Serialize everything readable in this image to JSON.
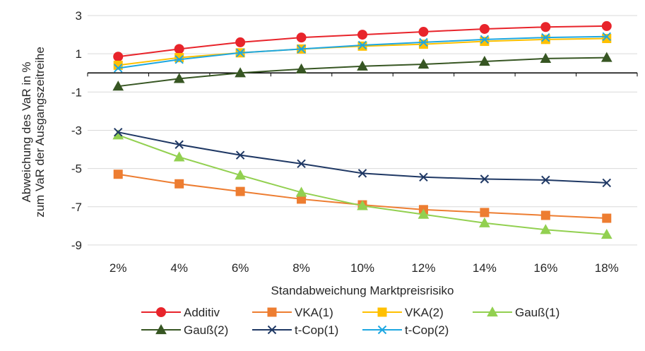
{
  "chart_data": {
    "type": "line",
    "xlabel": "Standabweichung Marktpreisrisiko",
    "ylabel_lines": [
      "Abweichung des VaR in %",
      "zum VaR der Ausgangszeitreihe"
    ],
    "categories": [
      "2%",
      "4%",
      "6%",
      "8%",
      "10%",
      "12%",
      "14%",
      "16%",
      "18%"
    ],
    "ylim": [
      -10,
      3
    ],
    "yticks": [
      3,
      1,
      -1,
      -3,
      -5,
      -7,
      -9
    ],
    "grid": true,
    "legend_position": "bottom",
    "series": [
      {
        "name": "Additiv",
        "color": "#e8242b",
        "marker": "circle",
        "values": [
          0.85,
          1.25,
          1.6,
          1.85,
          2.0,
          2.15,
          2.3,
          2.4,
          2.45
        ]
      },
      {
        "name": "VKA(1)",
        "color": "#ed7d31",
        "marker": "square",
        "values": [
          -5.3,
          -5.8,
          -6.2,
          -6.6,
          -6.9,
          -7.15,
          -7.3,
          -7.45,
          -7.6
        ]
      },
      {
        "name": "VKA(2)",
        "color": "#ffc000",
        "marker": "square",
        "values": [
          0.4,
          0.8,
          1.05,
          1.25,
          1.4,
          1.5,
          1.65,
          1.75,
          1.8
        ]
      },
      {
        "name": "Gauß(1)",
        "color": "#92d050",
        "marker": "triangle",
        "values": [
          -3.25,
          -4.4,
          -5.35,
          -6.25,
          -6.95,
          -7.4,
          -7.85,
          -8.2,
          -8.45
        ]
      },
      {
        "name": "Gauß(2)",
        "color": "#375623",
        "marker": "triangle",
        "values": [
          -0.7,
          -0.3,
          0.0,
          0.2,
          0.35,
          0.45,
          0.6,
          0.75,
          0.8
        ]
      },
      {
        "name": "t-Cop(1)",
        "color": "#1f3864",
        "marker": "x",
        "values": [
          -3.1,
          -3.75,
          -4.3,
          -4.75,
          -5.25,
          -5.45,
          -5.55,
          -5.6,
          -5.75
        ]
      },
      {
        "name": "t-Cop(2)",
        "color": "#1ea7e1",
        "marker": "x",
        "values": [
          0.25,
          0.7,
          1.05,
          1.25,
          1.45,
          1.6,
          1.75,
          1.85,
          1.9
        ]
      }
    ]
  }
}
